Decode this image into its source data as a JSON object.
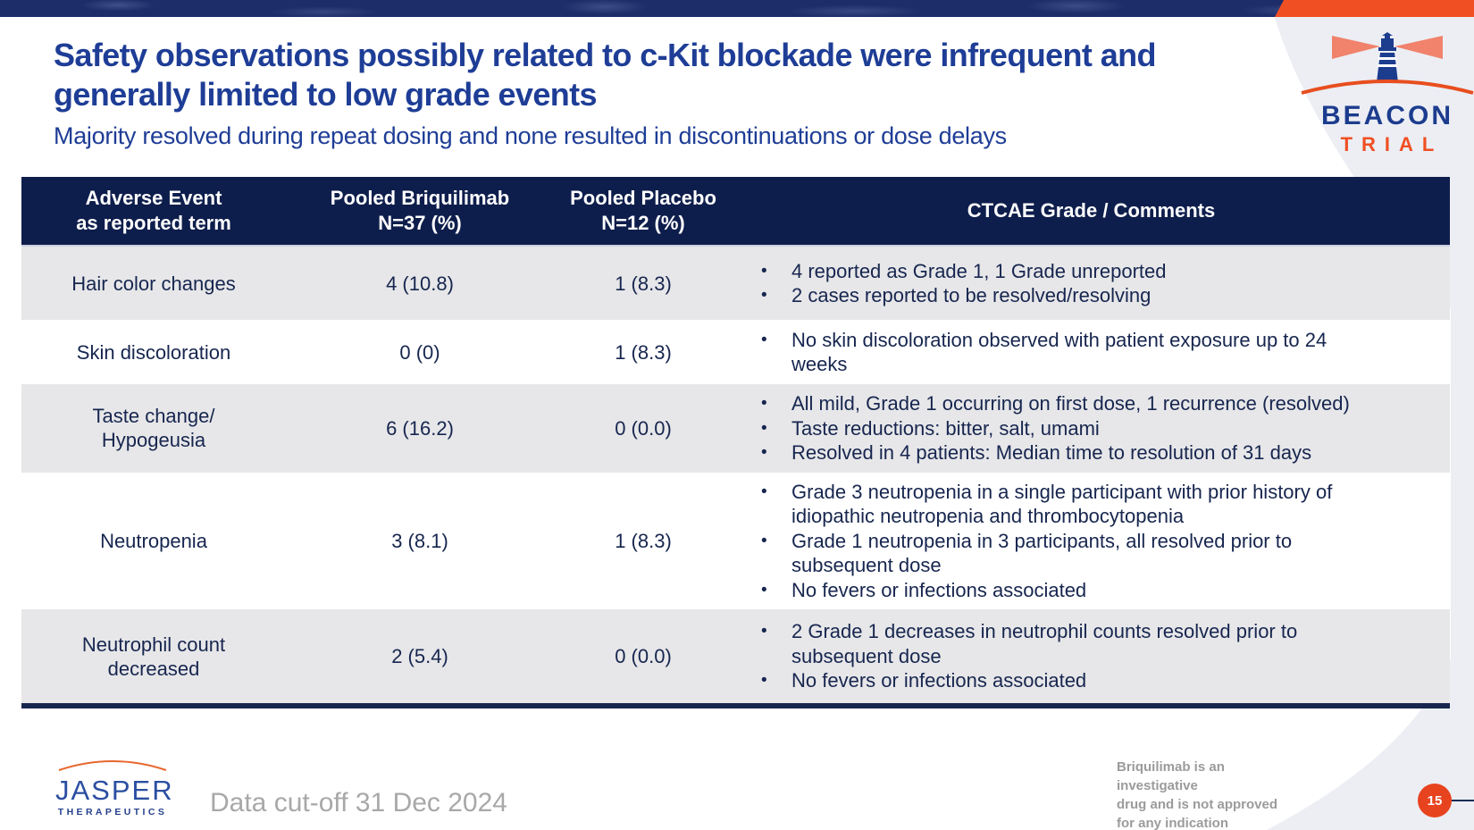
{
  "slide": {
    "title_line1": "Safety observations possibly related to c-Kit blockade were infrequent and",
    "title_line2": "generally limited to low grade events",
    "subtitle": "Majority resolved during repeat dosing and none resulted in discontinuations or dose delays"
  },
  "logos": {
    "beacon": {
      "word1": "BEACON",
      "word2": "TRIAL",
      "icon": "lighthouse-with-red-beams-over-orange-arc"
    },
    "jasper": {
      "word1": "JASPER",
      "word2": "THERAPEUTICS",
      "icon": "orange-arc-over-wordmark"
    }
  },
  "table": {
    "headers": [
      {
        "line1": "Adverse Event",
        "line2": "as reported term"
      },
      {
        "line1": "Pooled Briquilimab",
        "line2": "N=37 (%)"
      },
      {
        "line1": "Pooled Placebo",
        "line2": "N=12 (%)"
      },
      {
        "line1": "CTCAE Grade / Comments",
        "line2": ""
      }
    ],
    "rows": [
      {
        "event": "Hair color changes",
        "briquilimab": "4 (10.8)",
        "placebo": "1 (8.3)",
        "comments": [
          "4 reported as Grade 1, 1 Grade unreported",
          "2 cases reported to be resolved/resolving"
        ],
        "shaded": true
      },
      {
        "event": "Skin discoloration",
        "briquilimab": "0 (0)",
        "placebo": "1 (8.3)",
        "comments": [
          "No skin discoloration observed with patient exposure up to 24 weeks"
        ],
        "shaded": false
      },
      {
        "event": "Taste change/ Hypogeusia",
        "briquilimab": "6 (16.2)",
        "placebo": "0 (0.0)",
        "comments": [
          "All mild, Grade 1 occurring on first dose, 1 recurrence (resolved)",
          "Taste reductions: bitter, salt, umami",
          "Resolved in 4 patients: Median time to resolution of 31 days"
        ],
        "shaded": true
      },
      {
        "event": "Neutropenia",
        "briquilimab": "3 (8.1)",
        "placebo": "1 (8.3)",
        "comments": [
          "Grade 3 neutropenia in a single participant with prior history of idiopathic neutropenia and thrombocytopenia",
          "Grade 1 neutropenia in 3 participants, all resolved prior to subsequent dose",
          "No fevers or infections associated"
        ],
        "shaded": false
      },
      {
        "event": "Neutrophil count decreased",
        "briquilimab": "2 (5.4)",
        "placebo": "0 (0.0)",
        "comments": [
          "2 Grade 1 decreases in neutrophil counts resolved prior to subsequent dose",
          "No fevers or infections associated"
        ],
        "shaded": true
      }
    ]
  },
  "footer": {
    "data_cutoff": "Data cut-off 31 Dec 2024",
    "disclaimer_line1": "Briquilimab is an investigative",
    "disclaimer_line2": "drug and is not approved",
    "disclaimer_line3": "for any indication",
    "page_number": "15"
  },
  "colors": {
    "banner_navy": "#1d2d69",
    "header_navy": "#0e1e4c",
    "title_blue": "#1e3d96",
    "body_navy": "#17264f",
    "row_shade_gray": "#e7e7e9",
    "accent_orange": "#f04f23",
    "page_badge_red": "#e8431f",
    "swoosh_gray": "#eceef4"
  }
}
